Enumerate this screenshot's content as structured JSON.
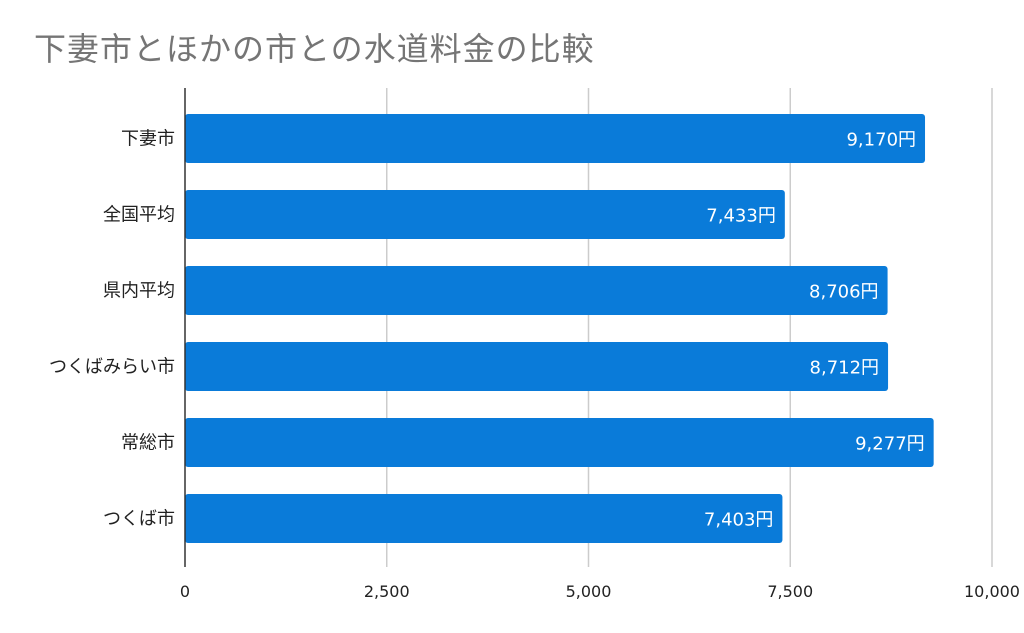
{
  "chart_data": {
    "type": "bar",
    "orientation": "horizontal",
    "title": "下妻市とほかの市との水道料金の比較",
    "categories": [
      "下妻市",
      "全国平均",
      "県内平均",
      "つくばみらい市",
      "常総市",
      "つくば市"
    ],
    "values": [
      9170,
      7433,
      8706,
      8712,
      9277,
      7403
    ],
    "data_labels": [
      "9,170円",
      "7,433円",
      "8,706円",
      "8,712円",
      "9,277円",
      "7,403円"
    ],
    "xlim": [
      0,
      10000
    ],
    "x_ticks": [
      0,
      2500,
      5000,
      7500,
      10000
    ],
    "x_tick_labels": [
      "0",
      "2,500",
      "5,000",
      "7,500",
      "10,000"
    ],
    "grid": true,
    "legend": "none",
    "bar_color": "#0A7BD9",
    "grid_color": "#CCCCCC",
    "axis_color": "#333333"
  }
}
